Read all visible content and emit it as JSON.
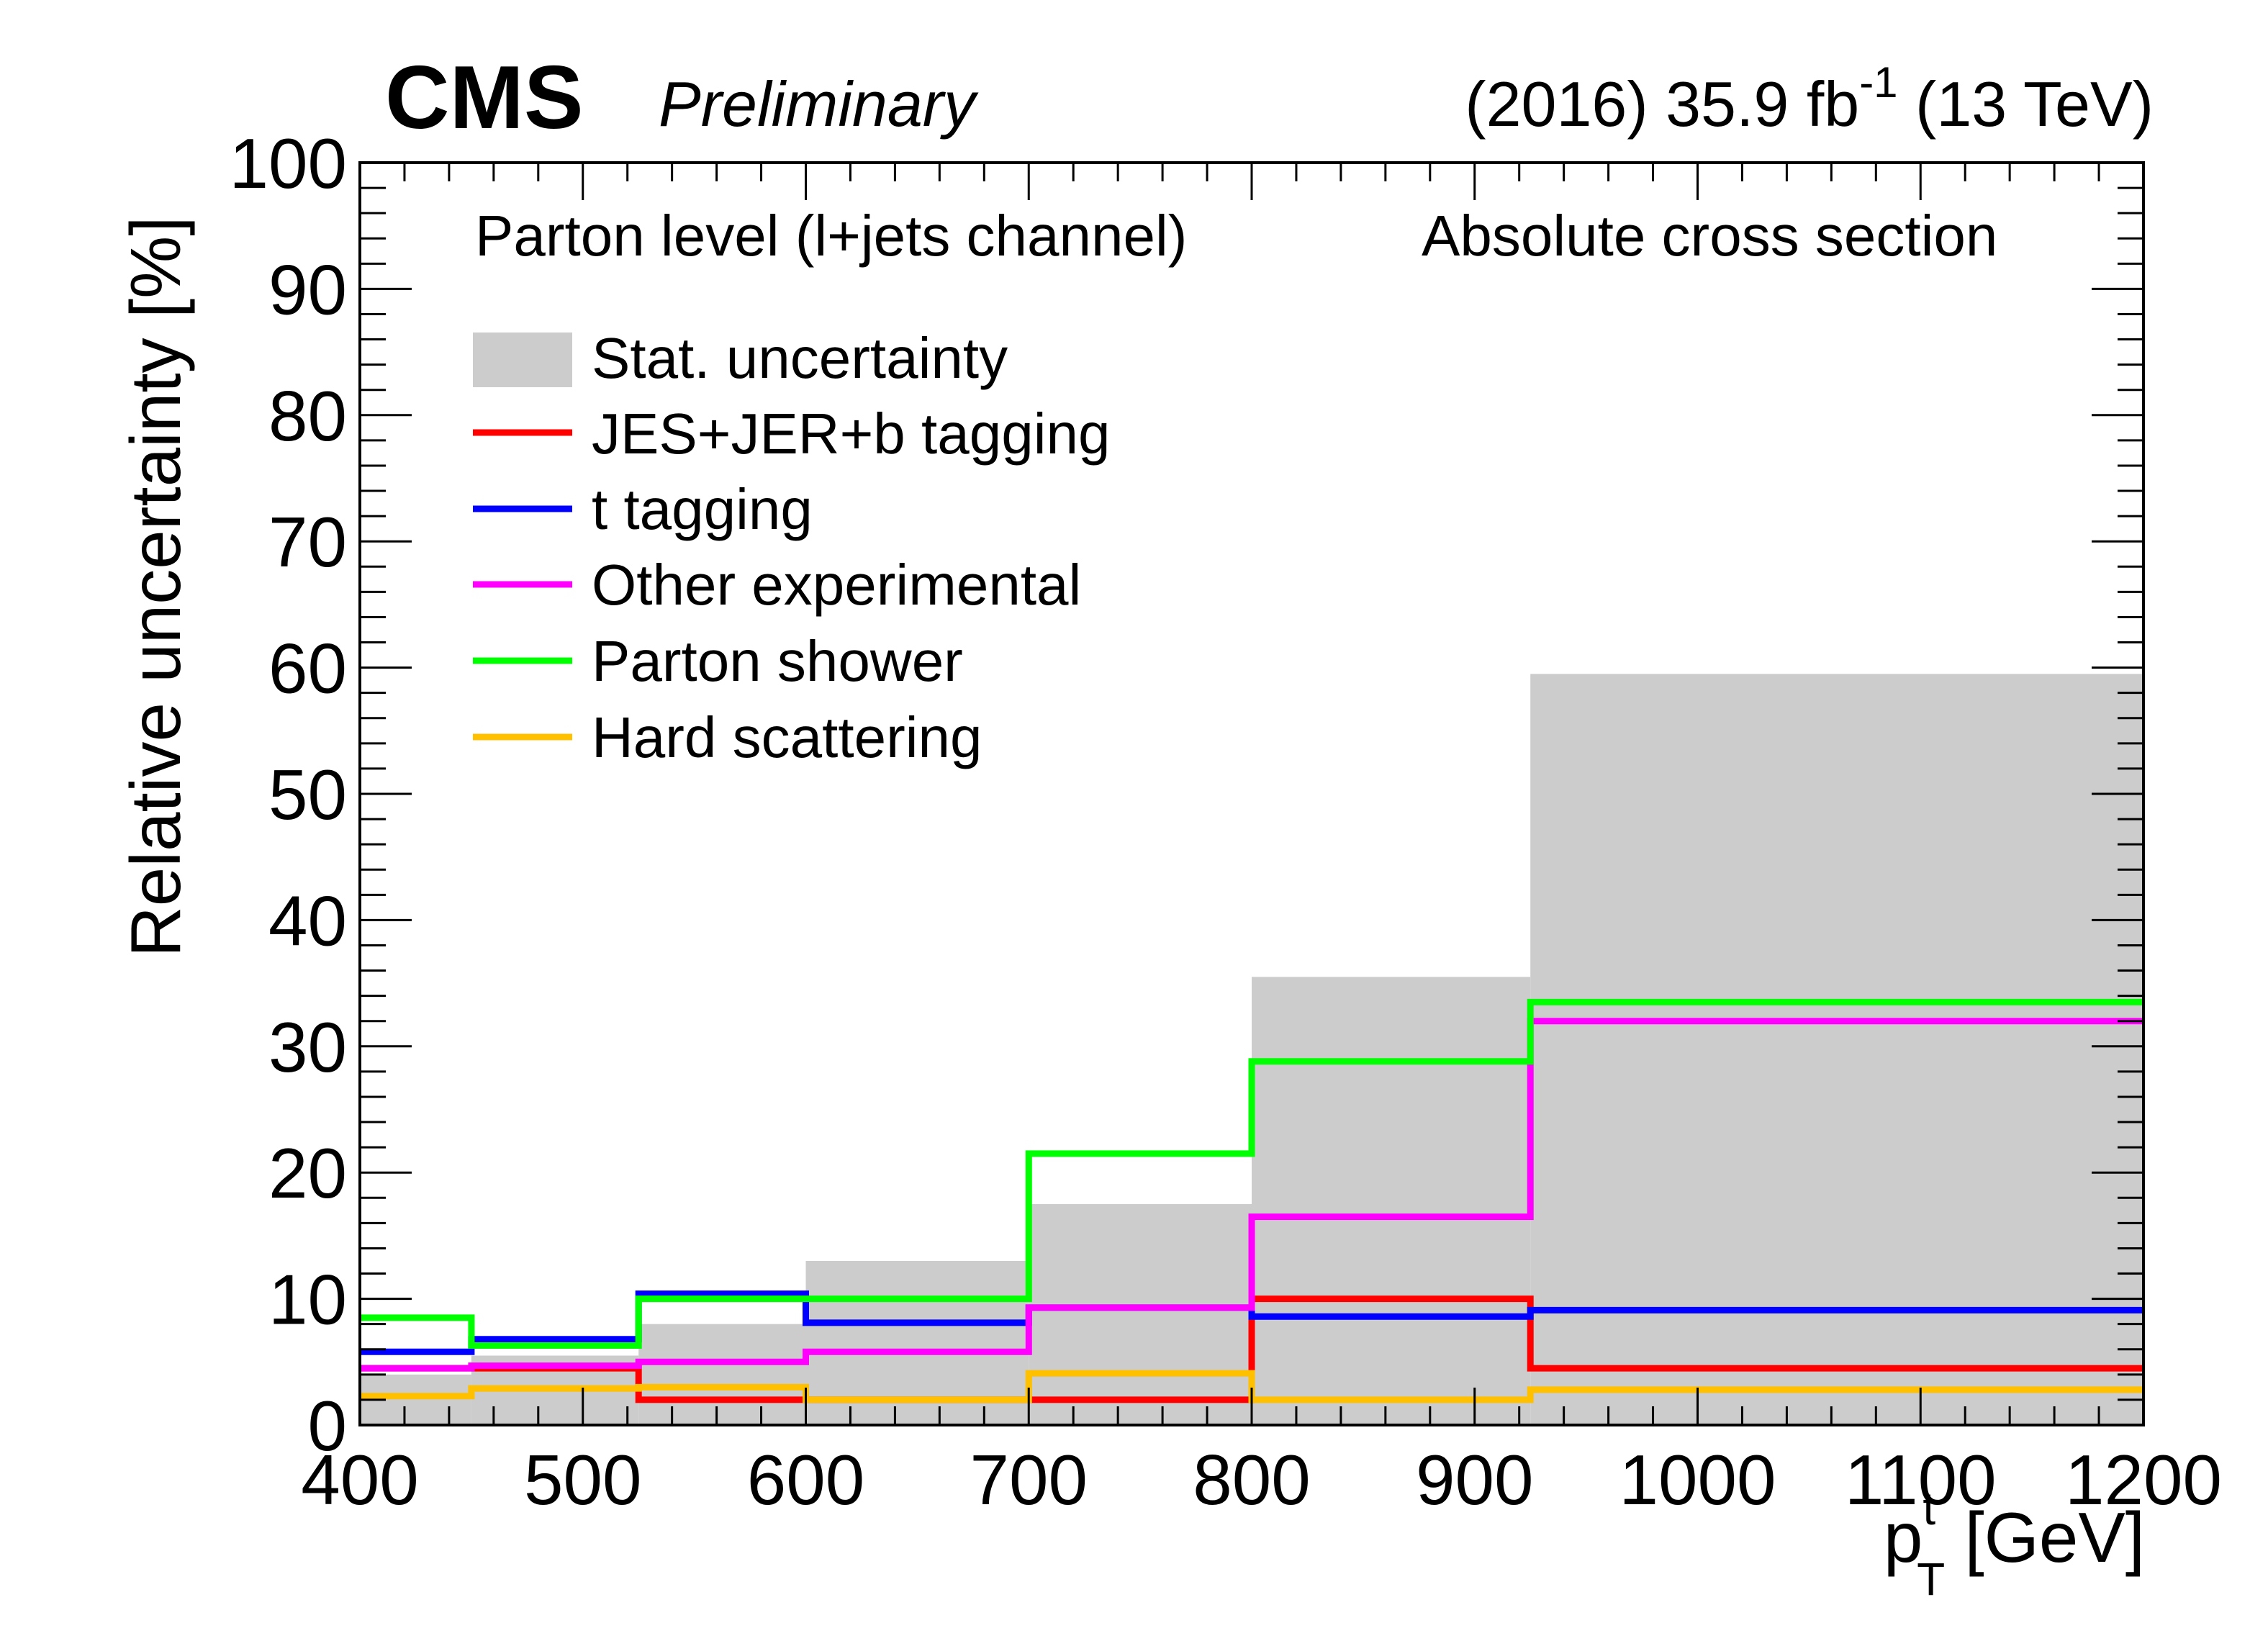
{
  "header": {
    "experiment": "CMS",
    "status": "Preliminary",
    "lumi_prefix": "(2016) 35.9 fb",
    "lumi_exponent": "-1",
    "lumi_suffix": " (13 TeV)"
  },
  "annotations": {
    "left": "Parton level (l+jets channel)",
    "right": "Absolute cross section"
  },
  "colors": {
    "stat": "#cccccc",
    "jes": "#ff0000",
    "ttag": "#0000ff",
    "other": "#ff00ff",
    "ps": "#00ff00",
    "hard": "#ffc000"
  },
  "chart_data": {
    "type": "histogram",
    "title": "",
    "xlabel": "p_T^t [GeV]",
    "xlabel_main": "p",
    "xlabel_sup": "t",
    "xlabel_sub": "T",
    "xlabel_unit": " [GeV]",
    "ylabel": "Relative uncertainty [%]",
    "xlim": [
      400,
      1200
    ],
    "ylim": [
      0,
      100
    ],
    "x_ticks": [
      "400",
      "500",
      "600",
      "700",
      "800",
      "900",
      "1000",
      "1100",
      "1200"
    ],
    "y_ticks": [
      "0",
      "10",
      "20",
      "30",
      "40",
      "50",
      "60",
      "70",
      "80",
      "90",
      "100"
    ],
    "bin_edges": [
      400,
      450,
      525,
      600,
      700,
      800,
      925,
      1200
    ],
    "stat_band": {
      "name": "Stat. uncertainty",
      "values": [
        4.0,
        5.5,
        8.0,
        13.0,
        17.5,
        35.5,
        59.5
      ]
    },
    "series": [
      {
        "name": "JES+JER+b tagging",
        "values": [
          4.5,
          4.5,
          2.0,
          2.0,
          2.0,
          10.0,
          4.5
        ]
      },
      {
        "name": "t tagging",
        "values": [
          5.8,
          6.8,
          10.4,
          8.1,
          9.3,
          8.6,
          9.1
        ]
      },
      {
        "name": "Other experimental",
        "values": [
          4.5,
          4.7,
          5.0,
          5.8,
          9.3,
          16.5,
          32.0
        ]
      },
      {
        "name": "Parton shower",
        "values": [
          8.5,
          6.3,
          10.0,
          10.0,
          21.5,
          28.8,
          33.5
        ]
      },
      {
        "name": "Hard scattering",
        "values": [
          2.3,
          2.9,
          3.0,
          2.0,
          4.1,
          2.0,
          2.8
        ]
      }
    ],
    "legend_position": "top-left"
  }
}
